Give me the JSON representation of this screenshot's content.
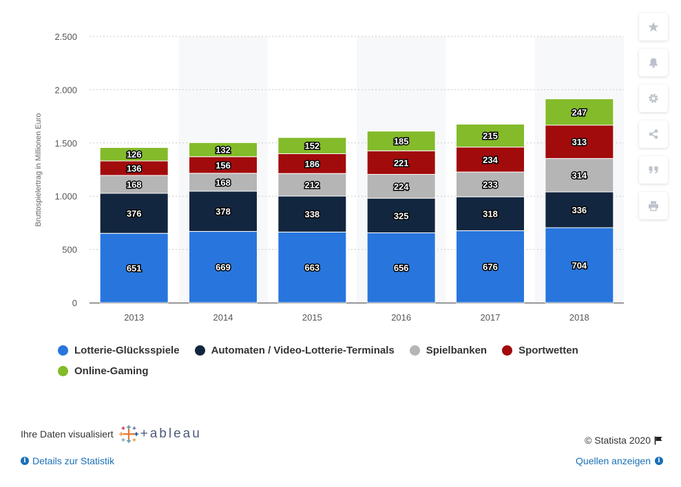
{
  "chart_data": {
    "type": "bar",
    "stacked": true,
    "ylabel": "Bruttospielertrag in Millionen Euro",
    "xlabel": "",
    "ylim": [
      0,
      2500
    ],
    "yticks": [
      0,
      500,
      1000,
      1500,
      2000,
      2500
    ],
    "ytick_labels": [
      "0",
      "500",
      "1.000",
      "1.500",
      "2.000",
      "2.500"
    ],
    "grid": true,
    "legend_position": "bottom",
    "categories": [
      "2013",
      "2014",
      "2015",
      "2016",
      "2017",
      "2018"
    ],
    "series": [
      {
        "name": "Lotterie-Glücksspiele",
        "color": "#2876dd",
        "values": [
          651,
          669,
          663,
          656,
          676,
          704
        ]
      },
      {
        "name": "Automaten / Video-Lotterie-Terminals",
        "color": "#13263f",
        "values": [
          376,
          378,
          338,
          325,
          318,
          336
        ]
      },
      {
        "name": "Spielbanken",
        "color": "#b5b5b5",
        "values": [
          168,
          168,
          212,
          224,
          233,
          314
        ]
      },
      {
        "name": "Sportwetten",
        "color": "#a20b0c",
        "values": [
          136,
          156,
          186,
          221,
          234,
          313
        ]
      },
      {
        "name": "Online-Gaming",
        "color": "#83bb2a",
        "values": [
          126,
          132,
          152,
          185,
          215,
          247
        ]
      }
    ]
  },
  "side_buttons": [
    {
      "icon": "star-icon"
    },
    {
      "icon": "bell-icon"
    },
    {
      "icon": "gear-icon"
    },
    {
      "icon": "share-icon"
    },
    {
      "icon": "quote-icon"
    },
    {
      "icon": "print-icon"
    }
  ],
  "footer": {
    "tableau_prefix": "Ihre Daten visualisiert",
    "tableau_word": "+ableau",
    "copyright": "© Statista 2020",
    "details_link": "Details zur Statistik",
    "sources_link": "Quellen anzeigen"
  }
}
